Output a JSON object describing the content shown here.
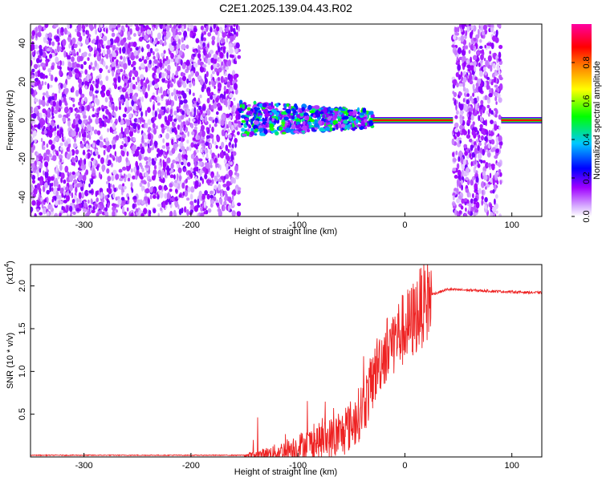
{
  "title": "C2E1.2025.139.04.43.R02",
  "chart_data": [
    {
      "type": "heatmap",
      "xlabel": "Height of straight line (km)",
      "ylabel": "Frequency (Hz)",
      "xlim": [
        -350,
        128
      ],
      "ylim": [
        -50,
        50
      ],
      "xticks": [
        -300,
        -200,
        -100,
        0,
        100
      ],
      "xtick_labels": [
        "-300",
        "-200",
        "-100",
        "0",
        "100"
      ],
      "yticks": [
        -40,
        -20,
        0,
        20,
        40
      ],
      "ytick_labels": [
        "-40",
        "-20",
        "0",
        "20",
        "40"
      ],
      "colorbar": {
        "label": "Normalized spectral amplitude",
        "range": [
          0,
          1
        ],
        "ticks": [
          0.0,
          0.2,
          0.4,
          0.6,
          0.8
        ],
        "tick_labels": [
          "0.0",
          "0.2",
          "0.4",
          "0.6",
          "0.8"
        ],
        "colors": [
          "#ffffff",
          "#a000ff",
          "#0000ff",
          "#00c8ff",
          "#00ff00",
          "#ffff00",
          "#ff8000",
          "#ff0000",
          "#ff00a0"
        ]
      },
      "regions": [
        {
          "x": [
            -350,
            -155
          ],
          "freq": [
            -50,
            50
          ],
          "amplitude": "low-noise"
        },
        {
          "x": [
            -155,
            -30
          ],
          "freq": [
            -10,
            8
          ],
          "amplitude": "mixed-signal"
        },
        {
          "x": [
            -30,
            45
          ],
          "freq": [
            -1.5,
            1.5
          ],
          "amplitude": "strong-line"
        },
        {
          "x": [
            45,
            90
          ],
          "freq": [
            -50,
            50
          ],
          "amplitude": "low-noise"
        },
        {
          "x": [
            90,
            128
          ],
          "freq": [
            -1.5,
            1.5
          ],
          "amplitude": "strong-line"
        }
      ]
    },
    {
      "type": "line",
      "xlabel": "Height of straight line (km)",
      "ylabel": "SNR (10 * v/v)",
      "yscale_label": "(x10",
      "yscale_exp": "4",
      "yscale_close": ")",
      "xlim": [
        -350,
        128
      ],
      "ylim": [
        0,
        2.25
      ],
      "xticks": [
        -300,
        -200,
        -100,
        0,
        100
      ],
      "xtick_labels": [
        "-300",
        "-200",
        "-100",
        "0",
        "100"
      ],
      "yticks": [
        0.5,
        1.0,
        1.5,
        2.0
      ],
      "ytick_labels": [
        "0.5",
        "1.0",
        "1.5",
        "2.0"
      ],
      "series": [
        {
          "color": "#ee2222",
          "x": [
            -350,
            -300,
            -200,
            -140,
            -120,
            -100,
            -80,
            -60,
            -45,
            -35,
            -25,
            -15,
            -5,
            5,
            15,
            25,
            40,
            60,
            80,
            100,
            128
          ],
          "y": [
            0.02,
            0.02,
            0.02,
            0.02,
            0.05,
            0.12,
            0.18,
            0.25,
            0.45,
            0.7,
            1.1,
            1.3,
            1.45,
            1.55,
            1.75,
            1.9,
            1.96,
            1.95,
            1.94,
            1.93,
            1.92
          ]
        }
      ]
    }
  ]
}
